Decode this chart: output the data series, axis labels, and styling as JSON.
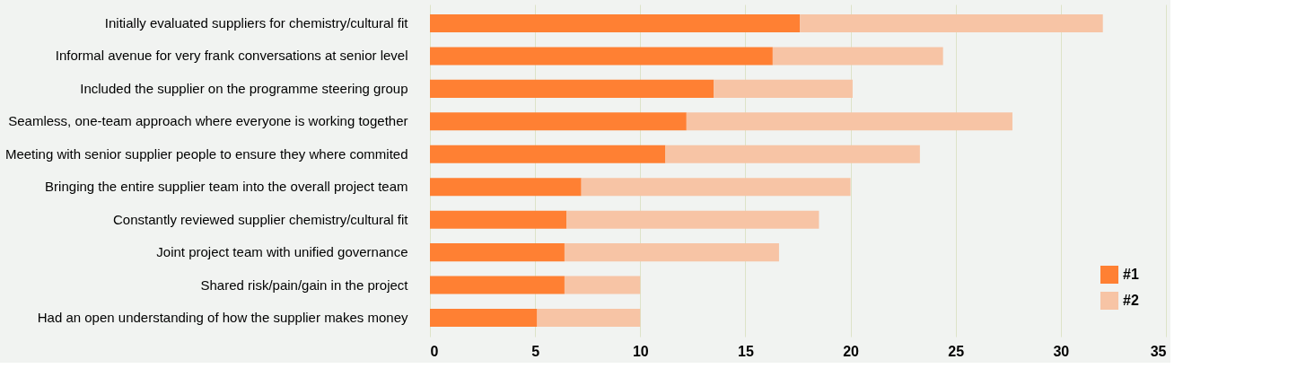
{
  "chart_data": {
    "type": "bar",
    "orientation": "horizontal",
    "stacked": true,
    "categories": [
      "Initially evaluated suppliers for chemistry/cultural fit",
      "Informal avenue for very frank conversations at senior level",
      "Included the supplier on the programme steering group",
      "Seamless, one-team approach where everyone is working together",
      "Meeting with senior supplier people to ensure they where commited",
      "Bringing the entire supplier team into the overall project team",
      "Constantly reviewed supplier chemistry/cultural fit",
      "Joint project team with unified governance",
      "Shared risk/pain/gain in the project",
      "Had an open understanding of how the supplier makes money"
    ],
    "series": [
      {
        "name": "#1",
        "color": "#ff8033",
        "values": [
          17.6,
          16.3,
          13.5,
          12.2,
          11.2,
          7.2,
          6.5,
          6.4,
          6.4,
          5.1
        ]
      },
      {
        "name": "#2",
        "color": "#f7c4a5",
        "values": [
          14.4,
          8.1,
          6.6,
          15.5,
          12.1,
          12.8,
          12.0,
          10.2,
          3.6,
          4.9
        ]
      }
    ],
    "xlim": [
      0,
      35
    ],
    "xticks": [
      0,
      5,
      10,
      15,
      20,
      25,
      30,
      35
    ],
    "grid": "x",
    "legend": "bottom right"
  }
}
